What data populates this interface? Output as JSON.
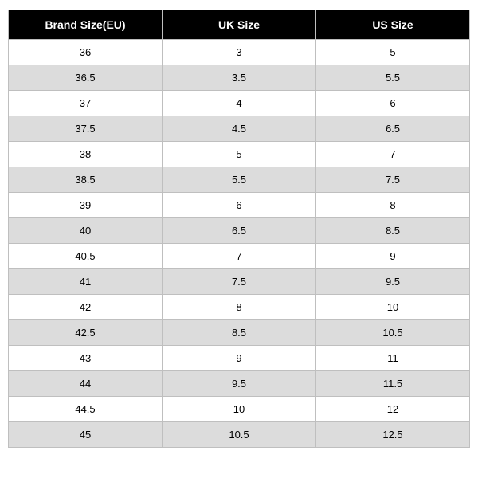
{
  "table": {
    "type": "table",
    "columns": [
      "Brand Size(EU)",
      "UK Size",
      "US Size"
    ],
    "rows": [
      [
        "36",
        "3",
        "5"
      ],
      [
        "36.5",
        "3.5",
        "5.5"
      ],
      [
        "37",
        "4",
        "6"
      ],
      [
        "37.5",
        "4.5",
        "6.5"
      ],
      [
        "38",
        "5",
        "7"
      ],
      [
        "38.5",
        "5.5",
        "7.5"
      ],
      [
        "39",
        "6",
        "8"
      ],
      [
        "40",
        "6.5",
        "8.5"
      ],
      [
        "40.5",
        "7",
        "9"
      ],
      [
        "41",
        "7.5",
        "9.5"
      ],
      [
        "42",
        "8",
        "10"
      ],
      [
        "42.5",
        "8.5",
        "10.5"
      ],
      [
        "43",
        "9",
        "11"
      ],
      [
        "44",
        "9.5",
        "11.5"
      ],
      [
        "44.5",
        "10",
        "12"
      ],
      [
        "45",
        "10.5",
        "12.5"
      ]
    ],
    "header_bg": "#000000",
    "header_text_color": "#ffffff",
    "row_bg": "#ffffff",
    "row_alt_bg": "#dcdcdc",
    "border_color": "#bfbfbf",
    "header_fontsize": 14,
    "cell_fontsize": 13,
    "column_widths": [
      "33.33%",
      "33.33%",
      "33.34%"
    ],
    "text_align": "center"
  }
}
